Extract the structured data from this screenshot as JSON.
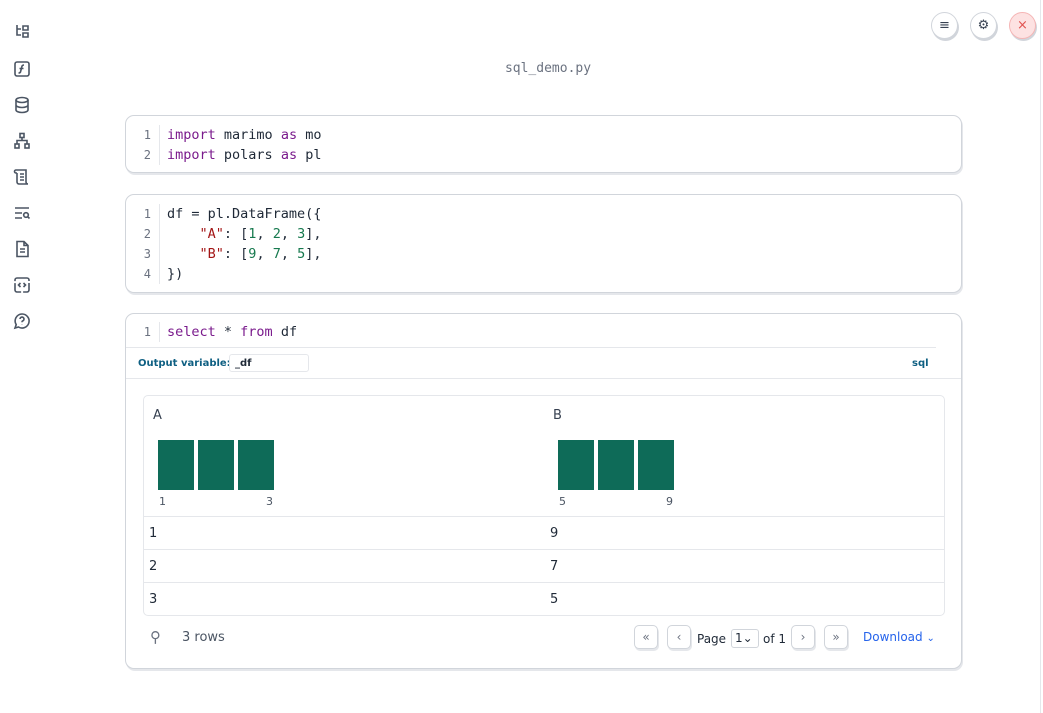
{
  "app": {
    "title": "sql_demo.py"
  },
  "sidebar": {
    "items": [
      {
        "icon": "file-tree-icon"
      },
      {
        "icon": "function-icon"
      },
      {
        "icon": "database-icon"
      },
      {
        "icon": "dependency-graph-icon"
      },
      {
        "icon": "scroll-icon"
      },
      {
        "icon": "search-list-icon"
      },
      {
        "icon": "document-icon"
      },
      {
        "icon": "code-snippet-icon"
      },
      {
        "icon": "help-bubble-icon"
      }
    ]
  },
  "topbar": {
    "menu": "≡",
    "settings": "⚙",
    "close": "×"
  },
  "cells": [
    {
      "lines": [
        [
          "1",
          "import marimo as mo"
        ],
        [
          "2",
          "import polars as pl"
        ]
      ]
    },
    {
      "lines": [
        [
          "1",
          "df = pl.DataFrame({"
        ],
        [
          "2",
          "    \"A\": [1, 2, 3],"
        ],
        [
          "3",
          "    \"B\": [9, 7, 5],"
        ],
        [
          "4",
          "})"
        ]
      ]
    },
    {
      "lines": [
        [
          "1",
          "select * from df"
        ]
      ],
      "output_label": "Output variable:",
      "output_value": "_df",
      "lang": "sql"
    }
  ],
  "table": {
    "columns": [
      {
        "name": "A",
        "min": "1",
        "max": "3",
        "hist": [
          1,
          1,
          1
        ]
      },
      {
        "name": "B",
        "min": "5",
        "max": "9",
        "hist": [
          1,
          1,
          1
        ]
      }
    ],
    "rows": [
      [
        "1",
        "9"
      ],
      [
        "2",
        "7"
      ],
      [
        "3",
        "5"
      ]
    ],
    "row_count": "3 rows",
    "page_label": "Page",
    "page": "1",
    "of_label": "of 1",
    "download": "Download",
    "bar_color": "#0e6b58"
  }
}
